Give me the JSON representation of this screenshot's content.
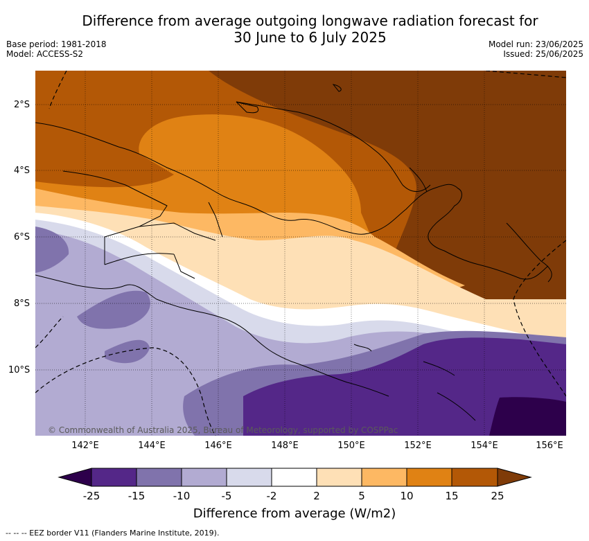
{
  "header": {
    "title_line1": "Difference from average outgoing longwave radiation forecast for",
    "title_line2": "30 June to 6 July 2025",
    "base_period": "Base period: 1981-2018",
    "model": "Model: ACCESS-S2",
    "model_run": "Model run: 23/06/2025",
    "issued": "Issued: 25/06/2025"
  },
  "map": {
    "lat_labels": [
      "2°S",
      "4°S",
      "6°S",
      "8°S",
      "10°S"
    ],
    "lon_labels": [
      "142°E",
      "144°E",
      "146°E",
      "148°E",
      "150°E",
      "152°E",
      "154°E",
      "156°E"
    ],
    "copyright": "© Commonwealth of Australia 2025, Bureau of Meteorology, supported by COSPPac",
    "colors": {
      "lt_-25": "#2d004b",
      "-25_-15": "#542788",
      "-15_-10": "#8073ac",
      "-10_-5": "#b2abd2",
      "-5_-2": "#d8daeb",
      "-2_2": "#ffffff",
      "2_5": "#fee0b6",
      "5_10": "#fdb863",
      "10_15": "#e08214",
      "15_25": "#b35806",
      "gt_25": "#7f3b08"
    }
  },
  "colorbar": {
    "ticks": [
      "-25",
      "-15",
      "-10",
      "-5",
      "-2",
      "2",
      "5",
      "10",
      "15",
      "25"
    ],
    "colors": [
      "#542788",
      "#8073ac",
      "#b2abd2",
      "#d8daeb",
      "#ffffff",
      "#fee0b6",
      "#fdb863",
      "#e08214",
      "#b35806"
    ],
    "low_extend_color": "#2d004b",
    "high_extend_color": "#7f3b08",
    "title": "Difference from average (W/m2)"
  },
  "footnote": "--  --  -- EEZ border V11 (Flanders Marine Institute, 2019)."
}
